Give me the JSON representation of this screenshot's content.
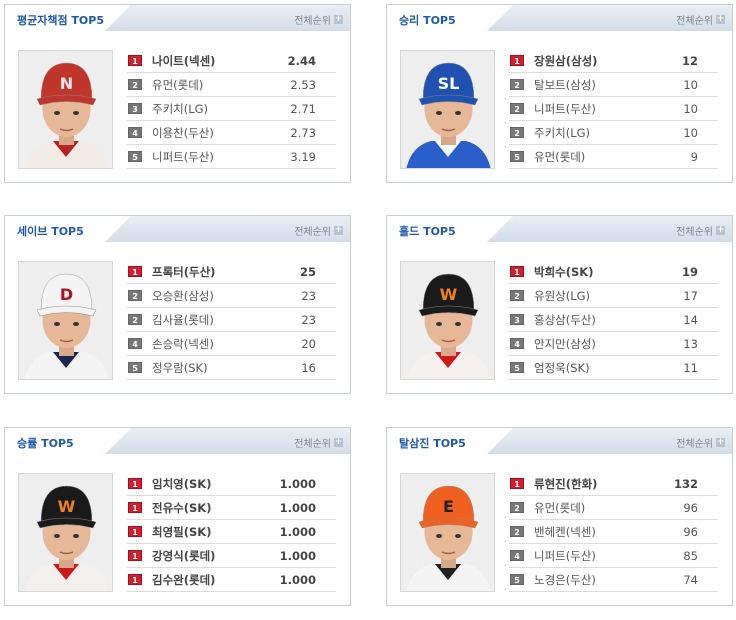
{
  "more_label": "전체순위",
  "panels": [
    {
      "title": "평균자책점 TOP5",
      "cap": "#c0352b",
      "logo": "N",
      "logo_color": "#e8e8e8",
      "jersey": "#f3ece6",
      "collar": "#b22",
      "rows": [
        {
          "rank": "1",
          "name": "나이트(넥센)",
          "value": "2.44",
          "bold": true
        },
        {
          "rank": "2",
          "name": "유먼(롯데)",
          "value": "2.53"
        },
        {
          "rank": "3",
          "name": "주키치(LG)",
          "value": "2.71"
        },
        {
          "rank": "4",
          "name": "이용찬(두산)",
          "value": "2.73"
        },
        {
          "rank": "5",
          "name": "니퍼트(두산)",
          "value": "3.19"
        }
      ]
    },
    {
      "title": "승리 TOP5",
      "cap": "#2050b0",
      "logo": "SL",
      "logo_color": "#fff",
      "jersey": "#2a5ec8",
      "collar": "#fff",
      "rows": [
        {
          "rank": "1",
          "name": "장원삼(삼성)",
          "value": "12",
          "bold": true
        },
        {
          "rank": "2",
          "name": "탈보트(삼성)",
          "value": "10"
        },
        {
          "rank": "2",
          "name": "니퍼트(두산)",
          "value": "10"
        },
        {
          "rank": "2",
          "name": "주키치(LG)",
          "value": "10"
        },
        {
          "rank": "5",
          "name": "유먼(롯데)",
          "value": "9"
        }
      ]
    },
    {
      "title": "세이브 TOP5",
      "cap": "#f4f4f4",
      "logo": "D",
      "logo_color": "#b01020",
      "jersey": "#f4f4f4",
      "collar": "#1a2550",
      "rows": [
        {
          "rank": "1",
          "name": "프록터(두산)",
          "value": "25",
          "bold": true
        },
        {
          "rank": "2",
          "name": "오승환(삼성)",
          "value": "23"
        },
        {
          "rank": "2",
          "name": "김사율(롯데)",
          "value": "23"
        },
        {
          "rank": "4",
          "name": "손승락(넥센)",
          "value": "20"
        },
        {
          "rank": "5",
          "name": "정우람(SK)",
          "value": "16"
        }
      ]
    },
    {
      "title": "홀드 TOP5",
      "cap": "#1a1a1a",
      "logo": "W",
      "logo_color": "#f08020",
      "jersey": "#f4f0ee",
      "collar": "#d01818",
      "rows": [
        {
          "rank": "1",
          "name": "박희수(SK)",
          "value": "19",
          "bold": true
        },
        {
          "rank": "2",
          "name": "유원상(LG)",
          "value": "17"
        },
        {
          "rank": "3",
          "name": "홍상삼(두산)",
          "value": "14"
        },
        {
          "rank": "4",
          "name": "안지만(삼성)",
          "value": "13"
        },
        {
          "rank": "5",
          "name": "엄정욱(SK)",
          "value": "11"
        }
      ]
    },
    {
      "title": "승률 TOP5",
      "cap": "#1a1a1a",
      "logo": "W",
      "logo_color": "#f08020",
      "jersey": "#f4f0ee",
      "collar": "#d01818",
      "rows": [
        {
          "rank": "1",
          "name": "임치영(SK)",
          "value": "1.000",
          "bold": true
        },
        {
          "rank": "1",
          "name": "전유수(SK)",
          "value": "1.000",
          "bold": true
        },
        {
          "rank": "1",
          "name": "최영필(SK)",
          "value": "1.000",
          "bold": true
        },
        {
          "rank": "1",
          "name": "강영식(롯데)",
          "value": "1.000",
          "bold": true
        },
        {
          "rank": "1",
          "name": "김수완(롯데)",
          "value": "1.000",
          "bold": true
        }
      ]
    },
    {
      "title": "탈삼진 TOP5",
      "cap": "#f06020",
      "logo": "E",
      "logo_color": "#222",
      "jersey": "#f4f4f4",
      "collar": "#222",
      "rows": [
        {
          "rank": "1",
          "name": "류현진(한화)",
          "value": "132",
          "bold": true
        },
        {
          "rank": "2",
          "name": "유먼(롯데)",
          "value": "96"
        },
        {
          "rank": "2",
          "name": "밴헤켄(넥센)",
          "value": "96"
        },
        {
          "rank": "4",
          "name": "니퍼트(두산)",
          "value": "85"
        },
        {
          "rank": "5",
          "name": "노경은(두산)",
          "value": "74"
        }
      ]
    }
  ]
}
